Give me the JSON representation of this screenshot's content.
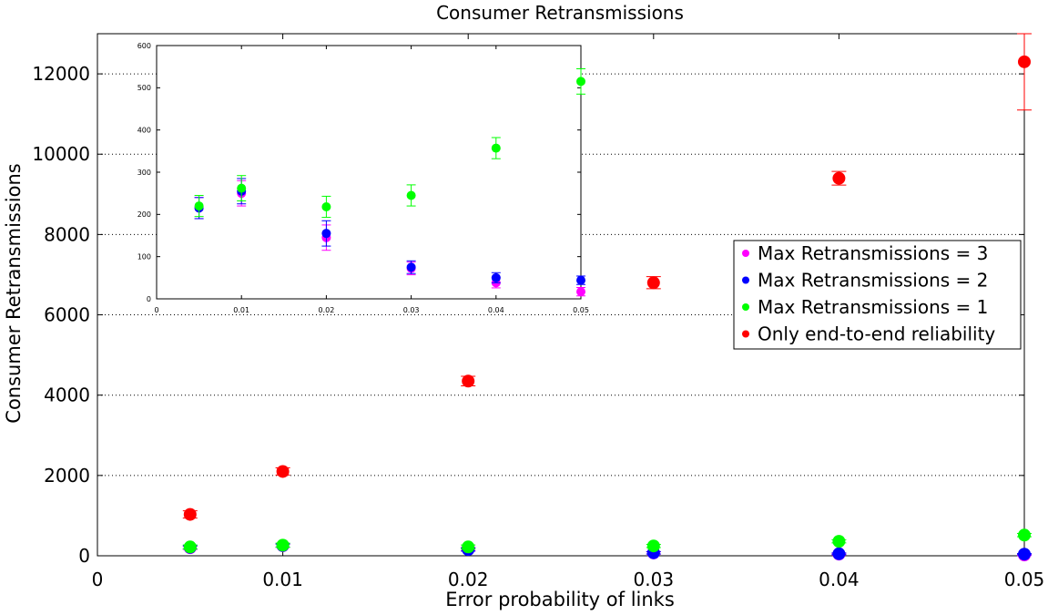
{
  "chart_data": [
    {
      "type": "scatter",
      "title": "Consumer Retransmissions",
      "xlabel": "Error probability of links",
      "ylabel": "Consumer Retransmissions",
      "xlim": [
        0,
        0.05
      ],
      "ylim": [
        0,
        13000
      ],
      "xticks": [
        0,
        0.01,
        0.02,
        0.03,
        0.04,
        0.05
      ],
      "xtick_labels": [
        "0",
        "0.01",
        "0.02",
        "0.03",
        "0.04",
        "0.05"
      ],
      "yticks": [
        0,
        2000,
        4000,
        6000,
        8000,
        10000,
        12000
      ],
      "ytick_labels": [
        "0",
        "2000",
        "4000",
        "6000",
        "8000",
        "10000",
        "12000"
      ],
      "grid": "horizontal dotted",
      "legend_position": "right",
      "series": [
        {
          "name": "Max Retransmissions = 3",
          "color": "#ff00ff",
          "points": [
            {
              "x": 0.005,
              "y": 200,
              "err": 40
            },
            {
              "x": 0.01,
              "y": 250,
              "err": 40
            },
            {
              "x": 0.02,
              "y": 170,
              "err": 40
            },
            {
              "x": 0.03,
              "y": 70,
              "err": 30
            },
            {
              "x": 0.04,
              "y": 40,
              "err": 20
            },
            {
              "x": 0.05,
              "y": 20,
              "err": 15
            }
          ]
        },
        {
          "name": "Max Retransmissions = 2",
          "color": "#0000ff",
          "points": [
            {
              "x": 0.005,
              "y": 210,
              "err": 40
            },
            {
              "x": 0.01,
              "y": 255,
              "err": 40
            },
            {
              "x": 0.02,
              "y": 155,
              "err": 40
            },
            {
              "x": 0.03,
              "y": 75,
              "err": 30
            },
            {
              "x": 0.04,
              "y": 50,
              "err": 20
            },
            {
              "x": 0.05,
              "y": 40,
              "err": 15
            }
          ]
        },
        {
          "name": "Max Retransmissions = 1",
          "color": "#00ff00",
          "points": [
            {
              "x": 0.005,
              "y": 220,
              "err": 50
            },
            {
              "x": 0.01,
              "y": 265,
              "err": 50
            },
            {
              "x": 0.02,
              "y": 220,
              "err": 50
            },
            {
              "x": 0.03,
              "y": 245,
              "err": 40
            },
            {
              "x": 0.04,
              "y": 360,
              "err": 40
            },
            {
              "x": 0.05,
              "y": 515,
              "err": 40
            }
          ]
        },
        {
          "name": "Only end-to-end reliability",
          "color": "#ff0000",
          "points": [
            {
              "x": 0.005,
              "y": 1030,
              "err": 90
            },
            {
              "x": 0.01,
              "y": 2100,
              "err": 90
            },
            {
              "x": 0.02,
              "y": 4350,
              "err": 120
            },
            {
              "x": 0.03,
              "y": 6800,
              "err": 150
            },
            {
              "x": 0.04,
              "y": 9400,
              "err": 170
            },
            {
              "x": 0.05,
              "y": 12300,
              "err": 1200
            }
          ]
        }
      ]
    },
    {
      "type": "scatter",
      "title": "",
      "xlabel": "",
      "ylabel": "",
      "xlim": [
        0,
        0.05
      ],
      "ylim": [
        0,
        600
      ],
      "xticks": [
        0,
        0.01,
        0.02,
        0.03,
        0.04,
        0.05
      ],
      "xtick_labels": [
        "0",
        "0.01",
        "0.02",
        "0.03",
        "0.04",
        "0.05"
      ],
      "yticks": [
        0,
        100,
        200,
        300,
        400,
        500,
        600
      ],
      "ytick_labels": [
        "0",
        "100",
        "200",
        "300",
        "400",
        "500",
        "600"
      ],
      "grid": "off",
      "series": [
        {
          "color": "#ff00ff",
          "points": [
            {
              "x": 0.005,
              "y": 215,
              "err": 25
            },
            {
              "x": 0.01,
              "y": 250,
              "err": 30
            },
            {
              "x": 0.02,
              "y": 145,
              "err": 30
            },
            {
              "x": 0.03,
              "y": 72,
              "err": 15
            },
            {
              "x": 0.04,
              "y": 38,
              "err": 12
            },
            {
              "x": 0.05,
              "y": 17,
              "err": 10
            }
          ]
        },
        {
          "color": "#0000ff",
          "points": [
            {
              "x": 0.005,
              "y": 215,
              "err": 25
            },
            {
              "x": 0.01,
              "y": 255,
              "err": 30
            },
            {
              "x": 0.02,
              "y": 155,
              "err": 30
            },
            {
              "x": 0.03,
              "y": 75,
              "err": 15
            },
            {
              "x": 0.04,
              "y": 50,
              "err": 12
            },
            {
              "x": 0.05,
              "y": 44,
              "err": 10
            }
          ]
        },
        {
          "color": "#00ff00",
          "points": [
            {
              "x": 0.005,
              "y": 220,
              "err": 25
            },
            {
              "x": 0.01,
              "y": 262,
              "err": 30
            },
            {
              "x": 0.02,
              "y": 218,
              "err": 25
            },
            {
              "x": 0.03,
              "y": 245,
              "err": 25
            },
            {
              "x": 0.04,
              "y": 357,
              "err": 25
            },
            {
              "x": 0.05,
              "y": 515,
              "err": 30
            }
          ]
        }
      ]
    }
  ]
}
